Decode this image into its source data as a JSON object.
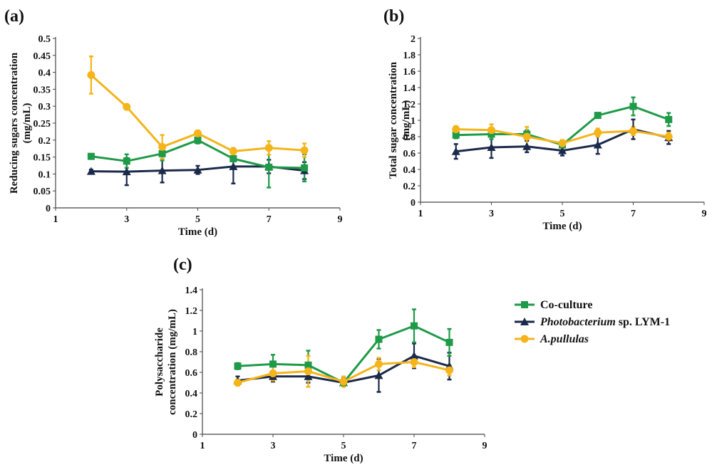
{
  "legend": {
    "items": [
      {
        "label_parts": [
          {
            "text": "Co-culture",
            "italic": false
          }
        ],
        "color": "#1e9a48",
        "marker": "square"
      },
      {
        "label_parts": [
          {
            "text": "Photobacterium",
            "italic": true
          },
          {
            "text": " sp. LYM-1",
            "italic": false
          }
        ],
        "color": "#1b2a4a",
        "marker": "triangle"
      },
      {
        "label_parts": [
          {
            "text": "A.pullulas",
            "italic": true
          }
        ],
        "color": "#f4b41a",
        "marker": "circle"
      }
    ]
  },
  "chart_data": [
    {
      "id": "a",
      "panel_label": "(a)",
      "type": "line",
      "xlabel": "Time (d)",
      "ylabel_lines": [
        "Reducing sugars concentration",
        "(mg/mL)"
      ],
      "xlim": [
        1,
        9
      ],
      "xticks": [
        1,
        3,
        5,
        7,
        9
      ],
      "ylim": [
        0,
        0.5
      ],
      "yticks": [
        0,
        0.05,
        0.1,
        0.15,
        0.2,
        0.25,
        0.3,
        0.35,
        0.4,
        0.45,
        0.5
      ],
      "ytick_labels": [
        "0",
        "0.05",
        "0.1",
        "0.15",
        "0.2",
        "0.25",
        "0.3",
        "0.35",
        "0.4",
        "0.45",
        "0.5"
      ],
      "x": [
        2,
        3,
        4,
        5,
        6,
        7,
        8
      ],
      "series": [
        {
          "name": "Co-culture",
          "color": "#1e9a48",
          "marker": "square",
          "values": [
            0.152,
            0.138,
            0.16,
            0.2,
            0.145,
            0.12,
            0.118
          ],
          "errors": [
            0.005,
            0.02,
            0.02,
            0.01,
            0.03,
            0.06,
            0.04
          ]
        },
        {
          "name": "Photobacterium sp. LYM-1",
          "color": "#1b2a4a",
          "marker": "triangle",
          "values": [
            0.108,
            0.107,
            0.11,
            0.112,
            0.122,
            0.122,
            0.11
          ],
          "errors": [
            0.005,
            0.04,
            0.035,
            0.012,
            0.05,
            0.02,
            0.025
          ]
        },
        {
          "name": "A.pullulas",
          "color": "#f4b41a",
          "marker": "circle",
          "values": [
            0.392,
            0.298,
            0.18,
            0.22,
            0.167,
            0.177,
            0.17
          ],
          "errors": [
            0.055,
            0.008,
            0.035,
            0.008,
            0.01,
            0.02,
            0.02
          ]
        }
      ]
    },
    {
      "id": "b",
      "panel_label": "(b)",
      "type": "line",
      "xlabel": "Time (d)",
      "ylabel_lines": [
        "Total sugar concentration",
        "(mg/mL)"
      ],
      "xlim": [
        1,
        9
      ],
      "xticks": [
        1,
        3,
        5,
        7,
        9
      ],
      "ylim": [
        0,
        2
      ],
      "yticks": [
        0,
        0.2,
        0.4,
        0.6,
        0.8,
        1,
        1.2,
        1.4,
        1.6,
        1.8,
        2
      ],
      "ytick_labels": [
        "0",
        "0.2",
        "0.4",
        "0.6",
        "0.8",
        "1",
        "1.2",
        "1.4",
        "1.6",
        "1.8",
        "2"
      ],
      "x": [
        2,
        3,
        4,
        5,
        6,
        7,
        8
      ],
      "series": [
        {
          "name": "Co-culture",
          "color": "#1e9a48",
          "marker": "square",
          "values": [
            0.82,
            0.83,
            0.83,
            0.7,
            1.06,
            1.17,
            1.01
          ],
          "errors": [
            0.04,
            0.06,
            0.05,
            0.03,
            0.03,
            0.11,
            0.08
          ]
        },
        {
          "name": "Photobacterium sp. LYM-1",
          "color": "#1b2a4a",
          "marker": "triangle",
          "values": [
            0.62,
            0.67,
            0.68,
            0.63,
            0.7,
            0.89,
            0.79
          ],
          "errors": [
            0.09,
            0.13,
            0.07,
            0.06,
            0.11,
            0.12,
            0.08
          ]
        },
        {
          "name": "A.pullulas",
          "color": "#f4b41a",
          "marker": "circle",
          "values": [
            0.89,
            0.88,
            0.8,
            0.72,
            0.85,
            0.87,
            0.8
          ],
          "errors": [
            0.04,
            0.07,
            0.12,
            0.04,
            0.05,
            0.05,
            0.05
          ]
        }
      ]
    },
    {
      "id": "c",
      "panel_label": "(c)",
      "type": "line",
      "xlabel": "Time (d)",
      "ylabel_lines": [
        "Polysaccharide",
        "concentration (mg/mL)"
      ],
      "xlim": [
        1,
        9
      ],
      "xticks": [
        1,
        3,
        5,
        7,
        9
      ],
      "ylim": [
        0,
        1.4
      ],
      "yticks": [
        0,
        0.2,
        0.4,
        0.6,
        0.8,
        1,
        1.2,
        1.4
      ],
      "ytick_labels": [
        "0",
        "0.2",
        "0.4",
        "0.6",
        "0.8",
        "1",
        "1.2",
        "1.4"
      ],
      "x": [
        2,
        3,
        4,
        5,
        6,
        7,
        8
      ],
      "series": [
        {
          "name": "Co-culture",
          "color": "#1e9a48",
          "marker": "square",
          "values": [
            0.66,
            0.68,
            0.67,
            0.5,
            0.92,
            1.05,
            0.89
          ],
          "errors": [
            0.03,
            0.09,
            0.14,
            0.03,
            0.09,
            0.16,
            0.13
          ]
        },
        {
          "name": "Photobacterium sp. LYM-1",
          "color": "#1b2a4a",
          "marker": "triangle",
          "values": [
            0.52,
            0.56,
            0.56,
            0.5,
            0.57,
            0.76,
            0.66
          ],
          "errors": [
            0.04,
            0.05,
            0.06,
            0.04,
            0.16,
            0.12,
            0.13
          ]
        },
        {
          "name": "A.pullulas",
          "color": "#f4b41a",
          "marker": "circle",
          "values": [
            0.5,
            0.59,
            0.61,
            0.51,
            0.68,
            0.7,
            0.62
          ],
          "errors": [
            0.03,
            0.07,
            0.15,
            0.05,
            0.06,
            0.05,
            0.05
          ]
        }
      ]
    }
  ]
}
